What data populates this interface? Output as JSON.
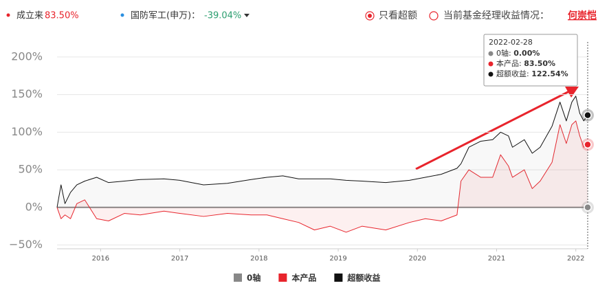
{
  "header": {
    "since_label": "成立来",
    "since_value": "83.50%",
    "index_label": "国防军工(申万)：",
    "index_value": "-39.04%",
    "only_excess": "只看超额",
    "manager_label": "当前基金经理收益情况：",
    "manager_name": "何崇恺"
  },
  "chart_data": {
    "type": "line",
    "x": [
      2015.45,
      2015.5,
      2015.55,
      2015.62,
      2015.7,
      2015.8,
      2015.95,
      2016.1,
      2016.3,
      2016.5,
      2016.8,
      2017,
      2017.3,
      2017.6,
      2017.9,
      2018.1,
      2018.3,
      2018.5,
      2018.7,
      2018.9,
      2019.1,
      2019.3,
      2019.6,
      2019.9,
      2020.1,
      2020.3,
      2020.5,
      2020.55,
      2020.65,
      2020.8,
      2020.95,
      2021.05,
      2021.15,
      2021.2,
      2021.35,
      2021.45,
      2021.55,
      2021.7,
      2021.8,
      2021.88,
      2021.95,
      2022.0,
      2022.05,
      2022.1,
      2022.15
    ],
    "series": [
      {
        "name": "0轴",
        "color": "#888888",
        "values": [
          0,
          0,
          0,
          0,
          0,
          0,
          0,
          0,
          0,
          0,
          0,
          0,
          0,
          0,
          0,
          0,
          0,
          0,
          0,
          0,
          0,
          0,
          0,
          0,
          0,
          0,
          0,
          0,
          0,
          0,
          0,
          0,
          0,
          0,
          0,
          0,
          0,
          0,
          0,
          0,
          0,
          0,
          0,
          0,
          0
        ]
      },
      {
        "name": "本产品",
        "color": "#e8242c",
        "values": [
          0,
          -15,
          -10,
          -15,
          5,
          10,
          -15,
          -18,
          -8,
          -10,
          -5,
          -8,
          -12,
          -8,
          -10,
          -10,
          -15,
          -20,
          -30,
          -25,
          -33,
          -25,
          -30,
          -20,
          -15,
          -18,
          -10,
          35,
          50,
          40,
          40,
          70,
          55,
          40,
          50,
          25,
          35,
          60,
          110,
          85,
          110,
          115,
          95,
          80,
          83.5
        ]
      },
      {
        "name": "超额收益",
        "color": "#111111",
        "values": [
          0,
          30,
          5,
          20,
          30,
          35,
          40,
          33,
          35,
          37,
          38,
          36,
          30,
          32,
          37,
          40,
          42,
          38,
          38,
          38,
          36,
          35,
          33,
          36,
          40,
          44,
          52,
          58,
          80,
          88,
          90,
          100,
          95,
          80,
          90,
          72,
          80,
          108,
          140,
          115,
          140,
          148,
          125,
          115,
          122.54
        ]
      }
    ],
    "xlim": [
      2015.45,
      2022.15
    ],
    "xticks": [
      2016,
      2017,
      2018,
      2019,
      2020,
      2021,
      2022
    ],
    "ylim": [
      -55,
      220
    ],
    "yticks": [
      {
        "value": -50,
        "label": "−50%"
      },
      {
        "value": 0,
        "label": "0%"
      },
      {
        "value": 50,
        "label": "50%"
      },
      {
        "value": 100,
        "label": "100%"
      },
      {
        "value": 150,
        "label": "150%"
      },
      {
        "value": 200,
        "label": "200%"
      }
    ],
    "grid": true,
    "tooltip": {
      "date": "2022-02-28",
      "labels": [
        "0.00%",
        "83.50%",
        "122.54%"
      ]
    }
  }
}
